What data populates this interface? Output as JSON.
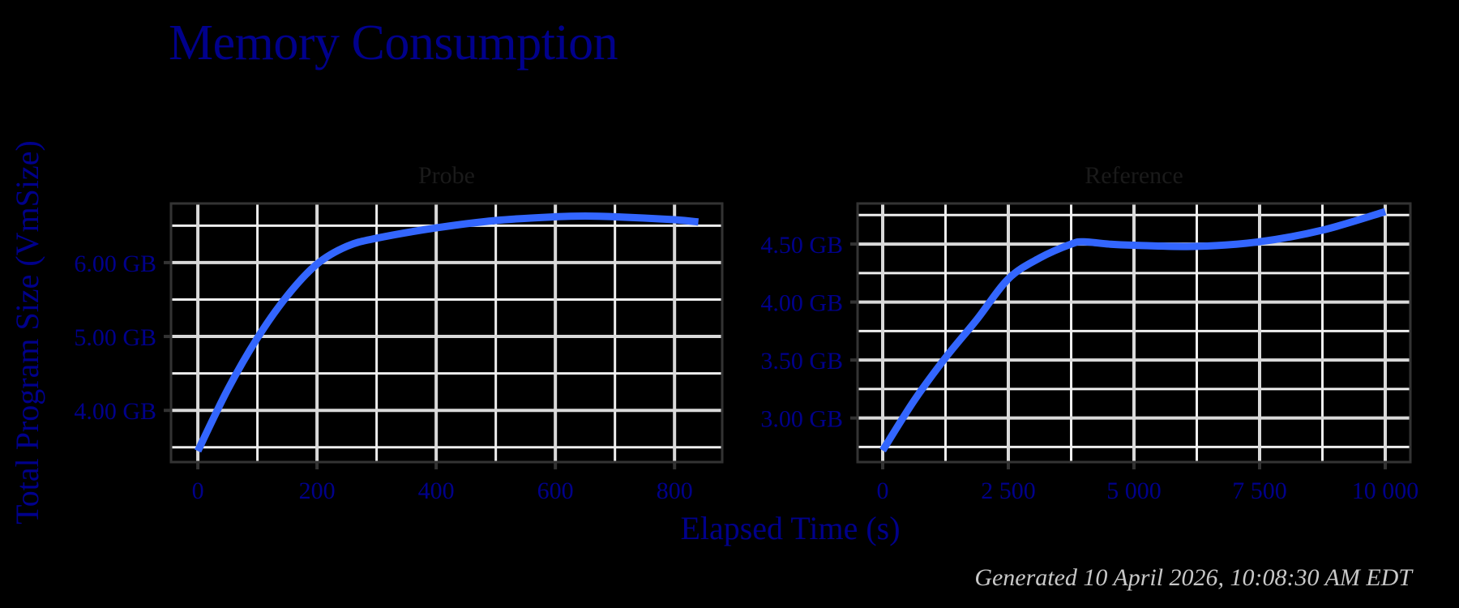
{
  "title": "Memory Consumption",
  "ylabel": "Total Program Size (VmSize)",
  "xlabel": "Elapsed Time (s)",
  "caption": "Generated 10 April 2026, 10:08:30 AM EDT",
  "colors": {
    "line": "#3366ff",
    "title": "#00008b",
    "grid": "#d9d9d9",
    "panel_border": "#333333",
    "background": "#000000"
  },
  "panels": [
    {
      "strip": "Probe",
      "x_ticks": [
        "0",
        "200",
        "400",
        "600",
        "800"
      ],
      "y_ticks": [
        "4.00 GB",
        "5.00 GB",
        "6.00 GB"
      ]
    },
    {
      "strip": "Reference",
      "x_ticks": [
        "0",
        "2 500",
        "5 000",
        "7 500",
        "10 000"
      ],
      "y_ticks": [
        "3.00 GB",
        "3.50 GB",
        "4.00 GB",
        "4.50 GB"
      ]
    }
  ],
  "chart_data": [
    {
      "type": "line",
      "title": "Probe",
      "xlabel": "Elapsed Time (s)",
      "ylabel": "Total Program Size (VmSize)",
      "x_tick_labels": [
        "0",
        "200",
        "400",
        "600",
        "800"
      ],
      "y_tick_labels": [
        "4.00 GB",
        "5.00 GB",
        "6.00 GB"
      ],
      "xlim": [
        -45,
        880
      ],
      "ylim": [
        3.3,
        6.8
      ],
      "grid": true,
      "series": [
        {
          "name": "VmSize",
          "x": [
            0,
            50,
            100,
            150,
            200,
            250,
            300,
            400,
            500,
            600,
            650,
            700,
            800,
            840
          ],
          "y": [
            3.45,
            4.28,
            4.98,
            5.55,
            5.98,
            6.22,
            6.33,
            6.47,
            6.57,
            6.62,
            6.63,
            6.62,
            6.58,
            6.55
          ]
        }
      ]
    },
    {
      "type": "line",
      "title": "Reference",
      "xlabel": "Elapsed Time (s)",
      "ylabel": "Total Program Size (VmSize)",
      "x_tick_labels": [
        "0",
        "2 500",
        "5 000",
        "7 500",
        "10 000"
      ],
      "y_tick_labels": [
        "3.00 GB",
        "3.50 GB",
        "4.00 GB",
        "4.50 GB"
      ],
      "xlim": [
        -500,
        10500
      ],
      "ylim": [
        2.62,
        4.85
      ],
      "grid": true,
      "series": [
        {
          "name": "VmSize",
          "x": [
            0,
            625,
            1250,
            1875,
            2500,
            3125,
            3750,
            4000,
            4500,
            5000,
            6250,
            7500,
            8750,
            10000
          ],
          "y": [
            2.72,
            3.15,
            3.52,
            3.85,
            4.2,
            4.38,
            4.5,
            4.52,
            4.5,
            4.49,
            4.48,
            4.52,
            4.62,
            4.78
          ]
        }
      ]
    }
  ]
}
